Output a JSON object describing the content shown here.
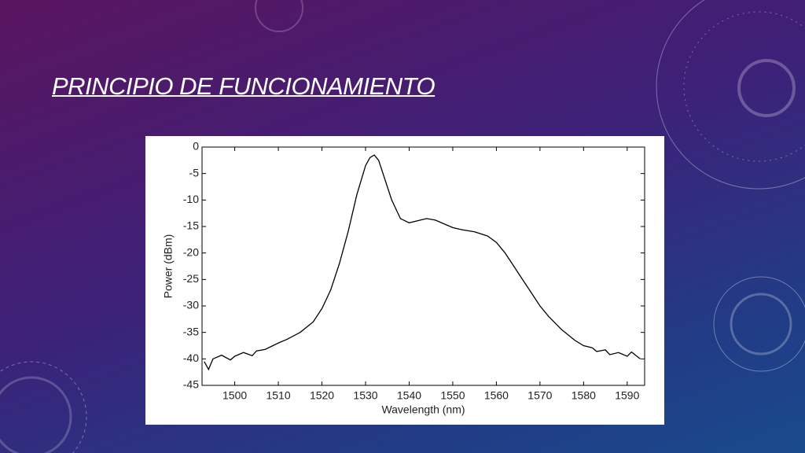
{
  "slide": {
    "title": "PRINCIPIO DE FUNCIONAMIENTO"
  },
  "chart_data": {
    "type": "line",
    "x_label": "Wavelength (nm)",
    "y_label": "Power (dBm)",
    "xlim": [
      1492.5,
      1594
    ],
    "ylim": [
      -45,
      0
    ],
    "xticks": [
      1500,
      1510,
      1520,
      1530,
      1540,
      1550,
      1560,
      1570,
      1580,
      1590
    ],
    "yticks": [
      0,
      -5,
      -10,
      -15,
      -20,
      -25,
      -30,
      -35,
      -40,
      -45
    ],
    "series": [
      {
        "name": "Power",
        "color": "#000000",
        "x": [
          1493,
          1494,
          1495,
          1497,
          1499,
          1500,
          1502,
          1504,
          1505,
          1507,
          1510,
          1512,
          1515,
          1518,
          1520,
          1522,
          1524,
          1526,
          1528,
          1530,
          1531,
          1532,
          1533,
          1534,
          1536,
          1538,
          1540,
          1542,
          1544,
          1546,
          1548,
          1550,
          1552,
          1555,
          1558,
          1560,
          1562,
          1564,
          1566,
          1568,
          1570,
          1572,
          1575,
          1578,
          1580,
          1582,
          1583,
          1585,
          1586,
          1588,
          1590,
          1591,
          1593
        ],
        "values": [
          -40.5,
          -42,
          -40,
          -39.3,
          -40.2,
          -39.5,
          -38.8,
          -39.4,
          -38.5,
          -38.2,
          -37,
          -36.3,
          -35,
          -33,
          -30.5,
          -27,
          -22,
          -16,
          -9,
          -3.5,
          -2,
          -1.5,
          -2.5,
          -5,
          -10,
          -13.5,
          -14.3,
          -13.9,
          -13.5,
          -13.8,
          -14.5,
          -15.2,
          -15.6,
          -16,
          -16.8,
          -18,
          -20,
          -22.5,
          -25,
          -27.5,
          -30,
          -32,
          -34.5,
          -36.5,
          -37.5,
          -37.9,
          -38.6,
          -38.3,
          -39.2,
          -38.8,
          -39.5,
          -38.7,
          -40
        ]
      }
    ]
  }
}
